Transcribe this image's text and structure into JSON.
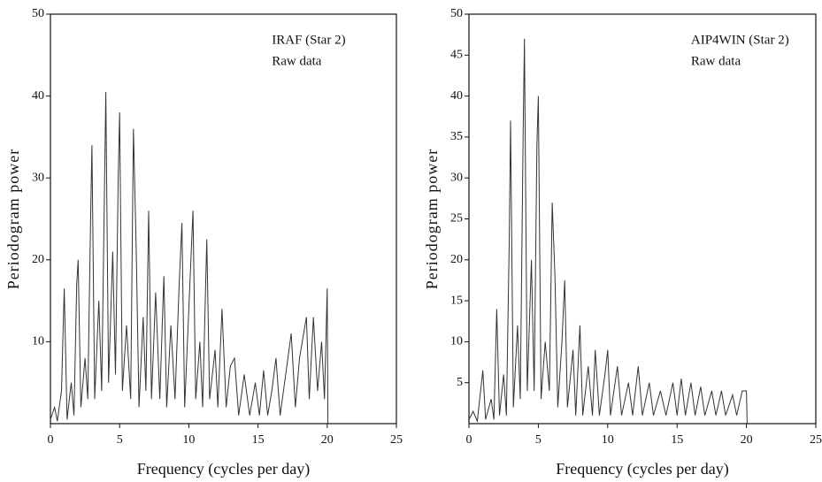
{
  "chart_data": [
    {
      "type": "line",
      "title": "IRAF (Star 2)",
      "subtitle": "Raw data",
      "x_label": "Frequency (cycles per day)",
      "y_label": "Periodogram power",
      "color": "#333333",
      "x": [
        0,
        0.3,
        0.5,
        0.8,
        1.0,
        1.2,
        1.5,
        1.7,
        1.9,
        2.0,
        2.2,
        2.5,
        2.7,
        2.9,
        3.0,
        3.2,
        3.5,
        3.7,
        3.9,
        4.0,
        4.2,
        4.5,
        4.7,
        4.9,
        5.0,
        5.2,
        5.5,
        5.8,
        6.0,
        6.2,
        6.4,
        6.7,
        6.9,
        7.1,
        7.3,
        7.6,
        7.9,
        8.2,
        8.4,
        8.7,
        9.0,
        9.3,
        9.5,
        9.7,
        10.0,
        10.3,
        10.5,
        10.8,
        11.0,
        11.3,
        11.5,
        11.9,
        12.1,
        12.4,
        12.7,
        13.0,
        13.3,
        13.6,
        14.0,
        14.4,
        14.8,
        15.1,
        15.4,
        15.7,
        16.0,
        16.3,
        16.6,
        17.0,
        17.4,
        17.7,
        18.0,
        18.5,
        18.7,
        19.0,
        19.3,
        19.6,
        19.8,
        20.0,
        20.05
      ],
      "values": [
        0.5,
        2,
        0.3,
        4,
        16.5,
        0.5,
        5,
        1,
        17,
        20,
        2,
        8,
        3,
        25,
        34,
        3,
        15,
        4,
        28,
        40.5,
        5,
        21,
        6,
        30,
        38,
        4,
        12,
        3,
        36,
        21,
        2,
        13,
        4,
        26,
        3,
        16,
        3,
        18,
        2,
        12,
        3,
        17,
        24.5,
        2,
        14,
        26,
        3,
        10,
        2,
        22.5,
        3,
        9,
        2,
        14,
        2,
        7,
        8,
        1,
        6,
        1,
        5,
        1,
        6.5,
        1,
        4,
        8,
        1,
        6,
        11,
        2,
        8,
        13,
        3,
        13,
        4,
        10,
        3,
        16.5,
        0
      ],
      "xlim": [
        0,
        25
      ],
      "xticks": [
        0,
        5,
        10,
        15,
        20,
        25
      ],
      "ylim": [
        0,
        50
      ],
      "yticks": [
        10,
        20,
        30,
        40,
        50
      ]
    },
    {
      "type": "line",
      "title": "AIP4WIN (Star 2)",
      "subtitle": "Raw data",
      "x_label": "Frequency (cycles per day)",
      "y_label": "Periodogram power",
      "color": "#333333",
      "x": [
        0,
        0.3,
        0.6,
        1.0,
        1.2,
        1.6,
        1.8,
        2.0,
        2.2,
        2.5,
        2.7,
        2.9,
        3.0,
        3.2,
        3.5,
        3.7,
        3.9,
        4.0,
        4.2,
        4.5,
        4.7,
        4.9,
        5.0,
        5.2,
        5.5,
        5.8,
        6.0,
        6.2,
        6.4,
        6.7,
        6.9,
        7.1,
        7.5,
        7.7,
        8.0,
        8.2,
        8.6,
        8.9,
        9.1,
        9.4,
        9.8,
        10.0,
        10.2,
        10.7,
        11.0,
        11.5,
        11.8,
        12.2,
        12.5,
        13.0,
        13.3,
        13.8,
        14.2,
        14.7,
        15.0,
        15.3,
        15.6,
        16.0,
        16.3,
        16.7,
        17.0,
        17.5,
        17.8,
        18.2,
        18.5,
        19.0,
        19.3,
        19.7,
        20.0,
        20.05
      ],
      "values": [
        0.5,
        1.5,
        0.3,
        6.5,
        0.5,
        3,
        0.5,
        14,
        1,
        6,
        1,
        22,
        37,
        2,
        12,
        3,
        35,
        47,
        4,
        20,
        4,
        34,
        40,
        3,
        10,
        4,
        27,
        18,
        2,
        10,
        17.5,
        2,
        9,
        1,
        12,
        1,
        7,
        1,
        9,
        1,
        6,
        9,
        1,
        7,
        1,
        5,
        1,
        7,
        1,
        5,
        1,
        4,
        1,
        5,
        1,
        5.5,
        1,
        5,
        1,
        4.5,
        1,
        4,
        1,
        4,
        1,
        3.5,
        1,
        4,
        4,
        0
      ],
      "xlim": [
        0,
        25
      ],
      "xticks": [
        0,
        5,
        10,
        15,
        20,
        25
      ],
      "ylim": [
        0,
        50
      ],
      "yticks": [
        5,
        10,
        15,
        20,
        25,
        30,
        35,
        40,
        45,
        50
      ]
    }
  ]
}
